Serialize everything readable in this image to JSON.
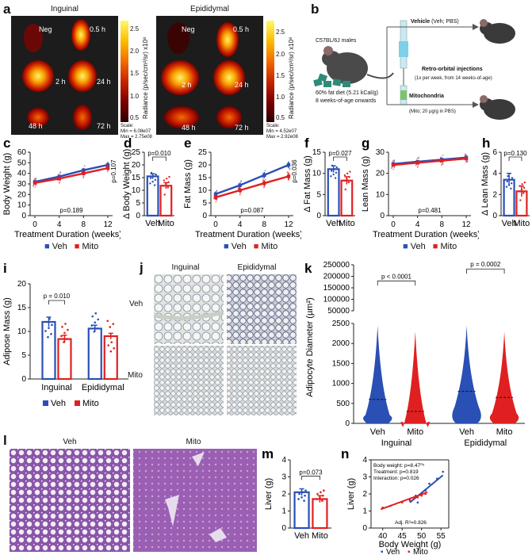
{
  "panels": {
    "a": {
      "label": "a",
      "titles": [
        "Inguinal",
        "Epididymal"
      ],
      "organ_labels": [
        "Neg",
        "0.5 h",
        "2 h",
        "24 h",
        "48 h",
        "72 h"
      ],
      "colorbar_ticks": [
        "2.5",
        "2.0",
        "1.5",
        "1.0",
        "0.5"
      ],
      "colorbar_title": "Radiance (p/sec/cm²/sr) x10⁸",
      "scales": [
        {
          "title": "Scale:",
          "min": "Min = 6.08e07",
          "max": "Max = 2.75e08"
        },
        {
          "title": "Scale:",
          "min": "Min = 4.52e07",
          "max": "Max = 2.92e08"
        }
      ]
    },
    "b": {
      "label": "b",
      "mouse_label": "C57BL/6J males",
      "diet_line1": "60% fat diet (5.21 kCal/g)",
      "diet_line2": "8 weeks-of-age onwards",
      "vehicle_title": "Vehicle",
      "vehicle_sub": " (Veh; PBS)",
      "retro_title": "Retro-orbital injections",
      "retro_sub": "(1x per week, from 14 weeks-of-age)",
      "mito_title": "Mitochondria",
      "mito_sub": "(Mito; 20 µg/g in PBS)"
    },
    "j": {
      "label": "j",
      "titles": [
        "Inguinal",
        "Epididymal"
      ],
      "rows": [
        "Veh",
        "Mito"
      ]
    },
    "l": {
      "label": "l",
      "titles": [
        "Veh",
        "Mito"
      ]
    }
  },
  "legend": {
    "veh": "Veh",
    "mito": "Mito"
  },
  "colors": {
    "veh": "#2a4fb5",
    "mito": "#e02020",
    "grey": "#888888"
  },
  "chart_data": [
    {
      "id": "c",
      "label": "c",
      "type": "line",
      "xlabel": "Treatment Duration (weeks)",
      "ylabel": "Body Weight (g)",
      "x": [
        0,
        4,
        8,
        12
      ],
      "xticks": [
        "0",
        "4",
        "8",
        "12"
      ],
      "ylim": [
        0,
        60
      ],
      "yticks": [
        0,
        10,
        20,
        30,
        40,
        50,
        60
      ],
      "series": [
        {
          "name": "Veh",
          "values": [
            32,
            37,
            43,
            48
          ],
          "err": [
            1.5,
            1.5,
            2,
            2
          ]
        },
        {
          "name": "Mito",
          "values": [
            31,
            35,
            40,
            45
          ],
          "err": [
            1.5,
            1.5,
            1.8,
            2
          ]
        }
      ],
      "annotations": [
        {
          "text": "p=0.189",
          "pos": "bottom"
        },
        {
          "text": "p=0.107",
          "pos": "right-top"
        }
      ]
    },
    {
      "id": "d",
      "label": "d",
      "type": "bar",
      "ylabel": "Δ Body Weight (g)",
      "categories": [
        "Veh",
        "Mito"
      ],
      "values": [
        15.5,
        11.8
      ],
      "err": [
        1.0,
        1.2
      ],
      "ylim": [
        0,
        25
      ],
      "yticks": [
        0,
        5,
        10,
        15,
        20,
        25
      ],
      "annotations": [
        {
          "text": "p=0.010"
        }
      ]
    },
    {
      "id": "e",
      "label": "e",
      "type": "line",
      "xlabel": "Treatment Duration (weeks)",
      "ylabel": "Fat Mass (g)",
      "x": [
        0,
        4,
        8,
        12
      ],
      "xticks": [
        "0",
        "4",
        "8",
        "12"
      ],
      "ylim": [
        0,
        25
      ],
      "yticks": [
        0,
        5,
        10,
        15,
        20,
        25
      ],
      "series": [
        {
          "name": "Veh",
          "values": [
            8.5,
            12,
            16,
            20
          ],
          "err": [
            1.0,
            1.0,
            1.2,
            1.3
          ]
        },
        {
          "name": "Mito",
          "values": [
            7.2,
            10,
            12.8,
            15.5
          ],
          "err": [
            1.0,
            1.0,
            1.2,
            1.5
          ]
        }
      ],
      "annotations": [
        {
          "text": "p=0.087",
          "pos": "bottom"
        },
        {
          "text": "p=0.036",
          "pos": "right-top"
        }
      ]
    },
    {
      "id": "f",
      "label": "f",
      "type": "bar",
      "ylabel": "Δ Fat Mass (g)",
      "categories": [
        "Veh",
        "Mito"
      ],
      "values": [
        11.0,
        8.3
      ],
      "err": [
        0.8,
        0.9
      ],
      "ylim": [
        0,
        15
      ],
      "yticks": [
        0,
        5,
        10,
        15
      ],
      "annotations": [
        {
          "text": "p=0.027"
        }
      ]
    },
    {
      "id": "g",
      "label": "g",
      "type": "line",
      "xlabel": "Treatment Duration (weeks)",
      "ylabel": "Lean Mass (g)",
      "x": [
        0,
        4,
        8,
        12
      ],
      "xticks": [
        "0",
        "4",
        "8",
        "12"
      ],
      "ylim": [
        0,
        30
      ],
      "yticks": [
        0,
        10,
        20,
        30
      ],
      "series": [
        {
          "name": "Veh",
          "values": [
            24.5,
            25.5,
            26.5,
            27.5
          ],
          "err": [
            0.7,
            0.7,
            0.8,
            0.8
          ]
        },
        {
          "name": "Mito",
          "values": [
            24,
            25,
            26,
            27
          ],
          "err": [
            0.7,
            0.7,
            0.8,
            0.8
          ]
        }
      ],
      "annotations": [
        {
          "text": "p=0.481",
          "pos": "bottom"
        }
      ]
    },
    {
      "id": "h",
      "label": "h",
      "type": "bar",
      "ylabel": "Δ Lean Mass (g)",
      "categories": [
        "Veh",
        "Mito"
      ],
      "values": [
        3.4,
        2.3
      ],
      "err": [
        0.6,
        0.5
      ],
      "ylim": [
        0,
        6
      ],
      "yticks": [
        0,
        2,
        4,
        6
      ],
      "annotations": [
        {
          "text": "p=0.130"
        }
      ]
    },
    {
      "id": "i",
      "label": "i",
      "type": "bar",
      "ylabel": "Adipose Mass (g)",
      "categories": [
        "Inguinal",
        "Epididymal"
      ],
      "series": [
        {
          "name": "Veh",
          "values": [
            12.0,
            10.6
          ],
          "err": [
            1.0,
            0.7
          ]
        },
        {
          "name": "Mito",
          "values": [
            8.4,
            9.0
          ],
          "err": [
            0.8,
            0.6
          ]
        }
      ],
      "ylim": [
        0,
        20
      ],
      "yticks": [
        0,
        5,
        10,
        15,
        20
      ],
      "annotations": [
        {
          "text": "p = 0.010"
        }
      ]
    },
    {
      "id": "k",
      "label": "k",
      "type": "violin",
      "ylabel": "Adipocyte Diameter (µm²)",
      "categories": [
        "Veh",
        "Mito",
        "Veh",
        "Mito"
      ],
      "groups": [
        "Inguinal",
        "Epididymal"
      ],
      "yticks_lower": [
        0,
        500,
        1000,
        1500,
        2000,
        2500
      ],
      "yticks_upper": [
        50000,
        100000,
        150000,
        200000,
        250000
      ],
      "medians": [
        600,
        300,
        800,
        650
      ],
      "annotations": [
        {
          "text": "p < 0.0001"
        },
        {
          "text": "p = 0.0002"
        }
      ]
    },
    {
      "id": "m",
      "label": "m",
      "type": "bar",
      "ylabel": "Liver (g)",
      "categories": [
        "Veh",
        "Mito"
      ],
      "values": [
        2.1,
        1.7
      ],
      "err": [
        0.2,
        0.2
      ],
      "ylim": [
        0,
        4
      ],
      "yticks": [
        0,
        1,
        2,
        3,
        4
      ],
      "annotations": [
        {
          "text": "p=0.073"
        }
      ]
    },
    {
      "id": "n",
      "label": "n",
      "type": "scatter",
      "xlabel": "Body Weight (g)",
      "ylabel": "Liver (g)",
      "xlim": [
        37,
        57
      ],
      "xticks": [
        40,
        45,
        50,
        55
      ],
      "ylim": [
        0,
        4
      ],
      "yticks": [
        0,
        1,
        2,
        3,
        4
      ],
      "series": [
        {
          "name": "Veh",
          "points": [
            [
              47,
              1.7
            ],
            [
              48.5,
              1.9
            ],
            [
              49,
              1.5
            ],
            [
              50,
              2.0
            ],
            [
              51,
              2.2
            ],
            [
              52,
              2.6
            ],
            [
              54,
              2.9
            ],
            [
              55.5,
              3.3
            ]
          ],
          "fit": [
            [
              47,
              1.5
            ],
            [
              55.5,
              3.1
            ]
          ]
        },
        {
          "name": "Mito",
          "points": [
            [
              40,
              1.2
            ],
            [
              42,
              1.3
            ],
            [
              45,
              1.5
            ],
            [
              47,
              1.6
            ],
            [
              48,
              1.7
            ],
            [
              49,
              1.8
            ],
            [
              50,
              1.9
            ],
            [
              51,
              2.0
            ]
          ],
          "fit": [
            [
              39.5,
              1.1
            ],
            [
              51.5,
              2.1
            ]
          ]
        }
      ],
      "stats": [
        "Body weight: p=8.47⁰⁵",
        "Treatment: p=0.819",
        "Interaction: p=0.026",
        "Adj. R²=0.826"
      ]
    }
  ]
}
